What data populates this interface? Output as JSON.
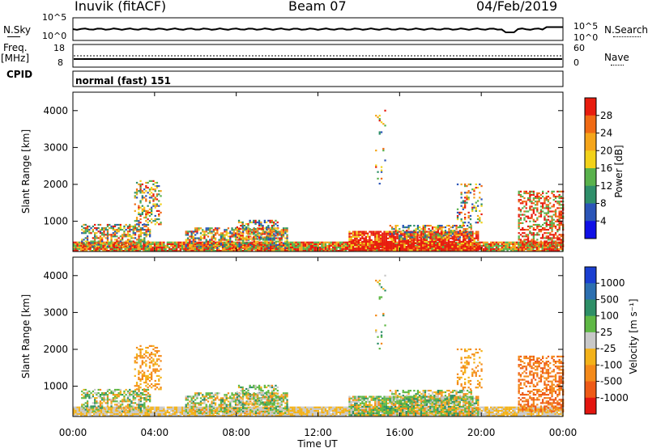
{
  "header": {
    "station": "Inuvik (fitACF)",
    "beam": "Beam 07",
    "date": "04/Feb/2019"
  },
  "top_panels": {
    "nsky_label": "N.Sky",
    "nsky_ticks": [
      "10^5",
      "10^0"
    ],
    "nsearch_label": "N.Search",
    "nsearch_ticks": [
      "10^5",
      "10^0"
    ],
    "freq_label_1": "Freq.",
    "freq_label_2": "[MHz]",
    "freq_ticks": [
      "18",
      "8"
    ],
    "nave_label": "Nave",
    "nave_ticks": [
      "60",
      "0"
    ],
    "cpid_label": "CPID",
    "cpid_value": "normal (fast) 151"
  },
  "time_axis": {
    "ticks": [
      "00:00",
      "04:00",
      "08:00",
      "12:00",
      "16:00",
      "20:00",
      "00:00"
    ],
    "label": "Time UT"
  },
  "chart_data": [
    {
      "type": "heatmap",
      "name": "power",
      "ylabel": "Slant Range [km]",
      "yticks": [
        "1000",
        "2000",
        "3000",
        "4000"
      ],
      "ylim": [
        180,
        4500
      ],
      "xlim_hours": [
        0,
        24
      ],
      "colorbar": {
        "label": "Power [dB]",
        "ticks": [
          "4",
          "8",
          "12",
          "16",
          "20",
          "24",
          "28"
        ],
        "range": [
          0,
          32
        ],
        "colors": [
          "#1010e6",
          "#2b55b8",
          "#2f8f6a",
          "#59b24c",
          "#f2d21a",
          "#f5a51a",
          "#f06a14",
          "#e81c0e"
        ]
      }
    },
    {
      "type": "heatmap",
      "name": "velocity",
      "ylabel": "Slant Range [km]",
      "yticks": [
        "1000",
        "2000",
        "3000",
        "4000"
      ],
      "ylim": [
        180,
        4500
      ],
      "xlim_hours": [
        0,
        24
      ],
      "colorbar": {
        "label": "Velocity [m s⁻¹]",
        "ticks": [
          "1000",
          "500",
          "100",
          "25",
          "-25",
          "-100",
          "-500",
          "-1000"
        ],
        "colors": [
          "#1a3fd1",
          "#2c6fb0",
          "#2e8f67",
          "#5fb845",
          "#c8c8c8",
          "#f3b21a",
          "#f48a1a",
          "#ee5a16",
          "#e3150f"
        ]
      }
    }
  ]
}
